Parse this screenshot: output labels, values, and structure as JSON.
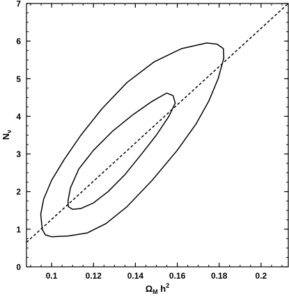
{
  "chart_data": {
    "type": "line",
    "title": "",
    "xlabel": {
      "base": "Ω",
      "sub": "M",
      "main": " h",
      "sup": "2"
    },
    "ylabel": {
      "base": "N",
      "sub": "ν"
    },
    "xlim": [
      0.088,
      0.213
    ],
    "ylim": [
      0,
      7
    ],
    "x_ticks": [
      0.1,
      0.12,
      0.14,
      0.16,
      0.18,
      0.2
    ],
    "x_tick_labels": [
      "0.1",
      "0.12",
      "0.14",
      "0.16",
      "0.18",
      "0.2"
    ],
    "y_ticks": [
      0,
      1,
      2,
      3,
      4,
      5,
      6,
      7
    ],
    "y_tick_labels": [
      "0",
      "1",
      "2",
      "3",
      "4",
      "5",
      "6",
      "7"
    ],
    "x_minor_step": 0.005,
    "y_minor_step": 0.25,
    "grid": false,
    "legend": "none",
    "series": [
      {
        "style": "solid",
        "closed": true,
        "points": [
          [
            0.0955,
            1.0
          ],
          [
            0.0948,
            1.4
          ],
          [
            0.0962,
            1.8
          ],
          [
            0.1,
            2.3
          ],
          [
            0.106,
            2.85
          ],
          [
            0.114,
            3.5
          ],
          [
            0.124,
            4.2
          ],
          [
            0.136,
            4.9
          ],
          [
            0.149,
            5.45
          ],
          [
            0.162,
            5.8
          ],
          [
            0.174,
            5.95
          ],
          [
            0.179,
            5.92
          ],
          [
            0.182,
            5.8
          ],
          [
            0.1822,
            5.55
          ],
          [
            0.1795,
            5.0
          ],
          [
            0.175,
            4.4
          ],
          [
            0.169,
            3.8
          ],
          [
            0.16,
            3.1
          ],
          [
            0.148,
            2.3
          ],
          [
            0.136,
            1.6
          ],
          [
            0.126,
            1.15
          ],
          [
            0.117,
            0.9
          ],
          [
            0.108,
            0.82
          ],
          [
            0.1,
            0.8
          ],
          [
            0.097,
            0.85
          ]
        ]
      },
      {
        "style": "solid",
        "closed": true,
        "points": [
          [
            0.108,
            1.6
          ],
          [
            0.1078,
            1.75
          ],
          [
            0.109,
            2.1
          ],
          [
            0.113,
            2.6
          ],
          [
            0.12,
            3.1
          ],
          [
            0.129,
            3.6
          ],
          [
            0.139,
            4.05
          ],
          [
            0.148,
            4.4
          ],
          [
            0.155,
            4.62
          ],
          [
            0.158,
            4.55
          ],
          [
            0.159,
            4.35
          ],
          [
            0.156,
            4.0
          ],
          [
            0.15,
            3.5
          ],
          [
            0.143,
            3.0
          ],
          [
            0.135,
            2.45
          ],
          [
            0.127,
            2.0
          ],
          [
            0.12,
            1.7
          ],
          [
            0.114,
            1.55
          ],
          [
            0.11,
            1.53
          ]
        ]
      },
      {
        "style": "dashed",
        "closed": false,
        "points": [
          [
            0.088,
            0.65
          ],
          [
            0.213,
            7.0
          ]
        ]
      }
    ]
  }
}
